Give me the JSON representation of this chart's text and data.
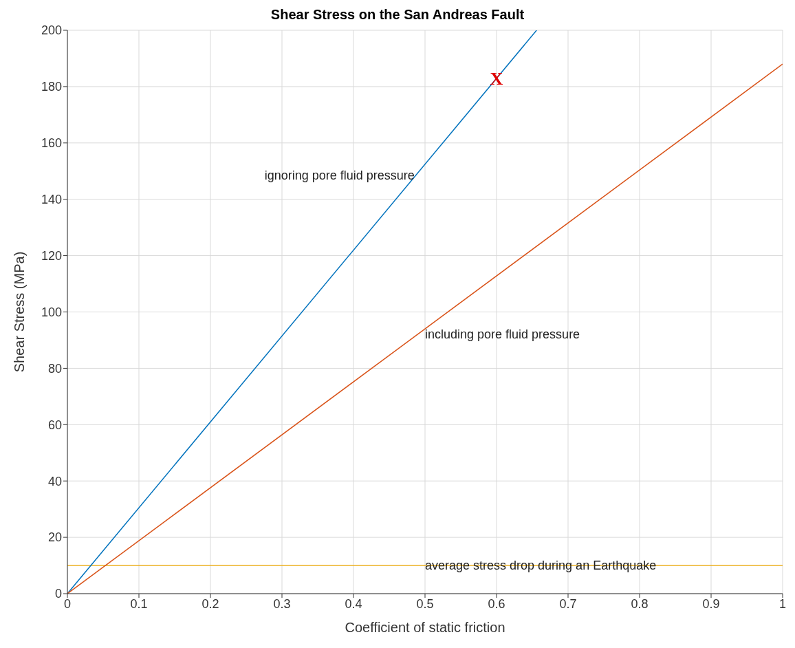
{
  "chart_data": {
    "type": "line",
    "title": "Shear Stress on the San Andreas Fault",
    "xlabel": "Coefficient of static friction",
    "ylabel": "Shear Stress (MPa)",
    "series": [
      {
        "name": "ignoring pore fluid pressure",
        "color": "#0072bd",
        "x": [
          0,
          0.656
        ],
        "values": [
          0,
          200
        ]
      },
      {
        "name": "including pore fluid pressure",
        "color": "#d95319",
        "x": [
          0,
          1
        ],
        "values": [
          0,
          188
        ]
      }
    ],
    "ref_lines": [
      {
        "axis": "y",
        "value": 10,
        "label": "average stress drop during an Earthquake",
        "color": "#edb120"
      }
    ],
    "annotations": [
      {
        "text": "X",
        "x": 0.6,
        "y": 183
      }
    ],
    "xlim": [
      0,
      1
    ],
    "xticks": [
      0,
      0.1,
      0.2,
      0.3,
      0.4,
      0.5,
      0.6,
      0.7,
      0.8,
      0.9,
      1
    ],
    "ylim": [
      0,
      200
    ],
    "yticks": [
      0,
      20,
      40,
      60,
      80,
      100,
      120,
      140,
      160,
      180,
      200
    ],
    "grid": true,
    "legend": false,
    "marker": "none",
    "line_style": "solid"
  }
}
